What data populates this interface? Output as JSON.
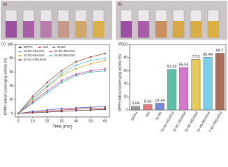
{
  "figure_labels": [
    "(a)",
    "(b)"
  ],
  "chart_data": [
    {
      "type": "line",
      "label": "(c)",
      "xlabel": "Time (min)",
      "ylabel": "DPPH radical scavenging activity (%)",
      "x": [
        0,
        10,
        20,
        30,
        40,
        50,
        60
      ],
      "xlim": [
        -2,
        63
      ],
      "xticks": [
        0,
        10,
        20,
        30,
        40,
        50,
        60
      ],
      "ylim": [
        -5,
        100
      ],
      "yticks": [
        0,
        20,
        40,
        60,
        80,
        100
      ],
      "series": [
        {
          "name": "DPPH",
          "color": "#222222",
          "values": [
            0,
            1,
            2,
            3,
            4,
            5,
            6
          ]
        },
        {
          "name": "Gel",
          "color": "#e0302a",
          "values": [
            0,
            2,
            3,
            5,
            6,
            7,
            8
          ]
        },
        {
          "name": "St-3G",
          "color": "#3a4fc4",
          "values": [
            0,
            3,
            5,
            7,
            8,
            9,
            10
          ]
        },
        {
          "name": "St-3G-2Eu/Gel",
          "color": "#2aa38f",
          "values": [
            0,
            15,
            30,
            45,
            55,
            60,
            62
          ]
        },
        {
          "name": "St-3G-4Eu/Gel",
          "color": "#c43ab0",
          "values": [
            0,
            17,
            33,
            48,
            57,
            62,
            65
          ]
        },
        {
          "name": "St-3G-6Eu/Gel",
          "color": "#c9a21c",
          "values": [
            0,
            20,
            38,
            55,
            65,
            72,
            77
          ]
        },
        {
          "name": "St-3G-8Eu/Gel",
          "color": "#3fb8d8",
          "values": [
            0,
            22,
            40,
            58,
            70,
            77,
            80
          ]
        },
        {
          "name": "St-3G-16Eu/Gel",
          "color": "#8a3a2a",
          "values": [
            0,
            25,
            45,
            62,
            75,
            82,
            87
          ]
        }
      ]
    },
    {
      "type": "bar",
      "label": "(d)",
      "ylabel": "DPPH radical scavenging activity (%)",
      "categories": [
        "DPPH",
        "Gel",
        "St-3G",
        "St-3G-2Eu/Gel",
        "St-3G-4Eu/Gel",
        "St-3G-6Eu/Gel",
        "St-3G-8Eu/Gel",
        "St-3G-16Eu/Gel"
      ],
      "values": [
        5.64,
        8.34,
        10.14,
        61.92,
        65.04,
        77.3,
        80.44,
        86.7
      ],
      "colors": [
        "#9a9a9a",
        "#e07a7a",
        "#7a8ad8",
        "#5cc0a8",
        "#d47ac8",
        "#e8c85a",
        "#7ad0e8",
        "#a8705a"
      ],
      "ylim": [
        0,
        100
      ],
      "yticks": [
        0,
        20,
        40,
        60,
        80,
        100
      ]
    }
  ]
}
